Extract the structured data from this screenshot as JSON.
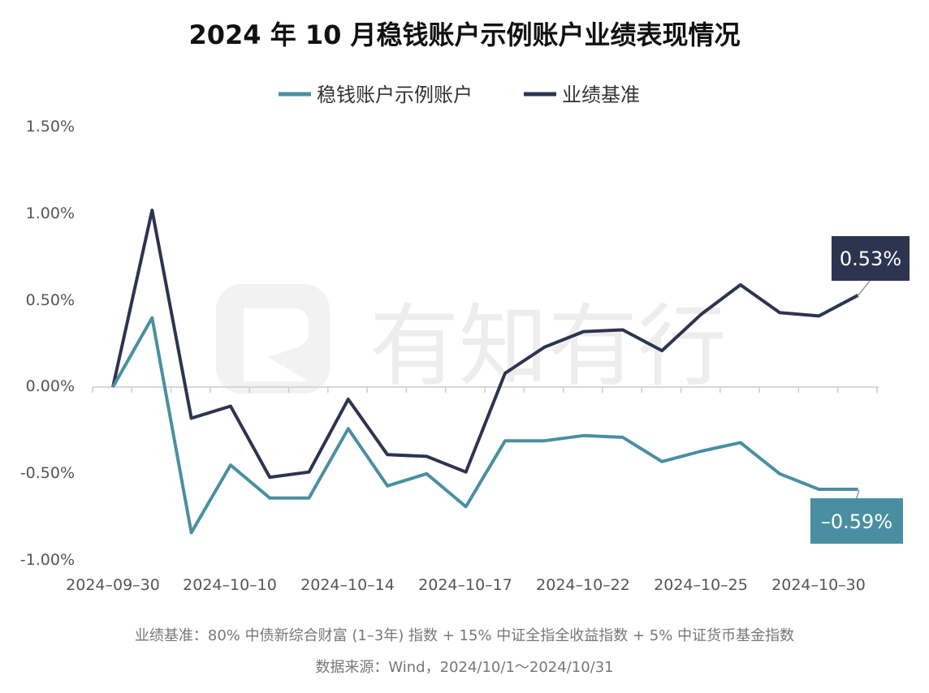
{
  "chart_data": {
    "type": "line",
    "title": "2024 年 10 月稳钱账户示例账户业绩表现情况",
    "x": [
      "2024-09-30",
      "2024-10-08",
      "2024-10-09",
      "2024-10-10",
      "2024-10-11",
      "2024-10-12",
      "2024-10-14",
      "2024-10-15",
      "2024-10-16",
      "2024-10-17",
      "2024-10-18",
      "2024-10-21",
      "2024-10-22",
      "2024-10-23",
      "2024-10-24",
      "2024-10-25",
      "2024-10-28",
      "2024-10-29",
      "2024-10-30",
      "2024-10-31"
    ],
    "x_tick_labels": [
      "2024–09–30",
      "2024–10–10",
      "2024–10–14",
      "2024–10–17",
      "2024–10–22",
      "2024–10–25",
      "2024–10–30"
    ],
    "y_tick_labels": [
      "1.50%",
      "1.00%",
      "0.50%",
      "0.00%",
      "-0.50%",
      "-1.00%"
    ],
    "ylim": [
      -1.0,
      1.5
    ],
    "legend_position": "top-center",
    "series": [
      {
        "name": "稳钱账户示例账户",
        "color": "#4a8fa1",
        "values": [
          0.0,
          0.4,
          -0.84,
          -0.45,
          -0.64,
          -0.64,
          -0.24,
          -0.57,
          -0.5,
          -0.69,
          -0.31,
          -0.31,
          -0.28,
          -0.29,
          -0.43,
          -0.37,
          -0.32,
          -0.5,
          -0.59,
          -0.59
        ],
        "end_label": "–0.59%"
      },
      {
        "name": "业绩基准",
        "color": "#2d3450",
        "values": [
          0.0,
          1.02,
          -0.18,
          -0.11,
          -0.52,
          -0.49,
          -0.07,
          -0.39,
          -0.4,
          -0.49,
          0.08,
          0.23,
          0.32,
          0.33,
          0.21,
          0.42,
          0.59,
          0.43,
          0.41,
          0.53
        ],
        "end_label": "0.53%"
      }
    ],
    "footnotes": [
      "业绩基准：80% 中债新综合财富 (1–3年) 指数 + 15% 中证全指全收益指数 + 5% 中证货币基金指数",
      "数据来源：Wind，2024/10/1～2024/10/31"
    ],
    "watermark": "有知有行"
  }
}
